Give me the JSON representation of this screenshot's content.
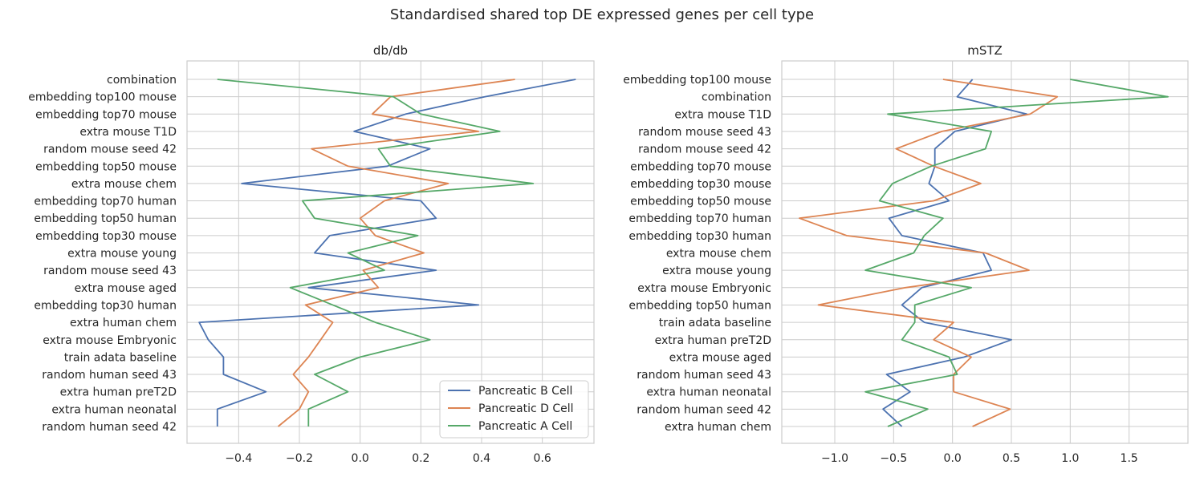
{
  "figure": {
    "title": "Standardised shared top DE expressed genes per cell type"
  },
  "chart_data": [
    {
      "type": "line",
      "title": "db/db",
      "orientation": "horizontal",
      "xlim": [
        -0.57,
        0.77
      ],
      "xticks": [
        -0.4,
        -0.2,
        0.0,
        0.2,
        0.4,
        0.6
      ],
      "xtick_labels": [
        "−0.4",
        "−0.2",
        "0.0",
        "0.2",
        "0.4",
        "0.6"
      ],
      "grid": true,
      "legend": {
        "position": "lower-right"
      },
      "categories": [
        "combination",
        "embedding top100 mouse",
        "embedding top70 mouse",
        "extra mouse T1D",
        "random mouse seed 42",
        "embedding top50 mouse",
        "extra mouse chem",
        "embedding top70 human",
        "embedding top50 human",
        "embedding top30 mouse",
        "extra mouse young",
        "random mouse seed 43",
        "extra mouse aged",
        "embedding top30 human",
        "extra human chem",
        "extra mouse Embryonic",
        "train adata baseline",
        "random human seed 43",
        "extra human preT2D",
        "extra human neonatal",
        "random human seed 42"
      ],
      "series": [
        {
          "name": "Pancreatic B Cell",
          "color": "#4c72b0",
          "values": [
            0.71,
            0.41,
            0.15,
            -0.02,
            0.23,
            0.09,
            -0.39,
            0.2,
            0.25,
            -0.1,
            -0.15,
            0.25,
            -0.17,
            0.39,
            -0.53,
            -0.5,
            -0.45,
            -0.45,
            -0.31,
            -0.47,
            -0.47
          ]
        },
        {
          "name": "Pancreatic D Cell",
          "color": "#dd8452",
          "values": [
            0.51,
            0.1,
            0.04,
            0.39,
            -0.16,
            -0.04,
            0.29,
            0.08,
            0.0,
            0.05,
            0.21,
            0.01,
            0.06,
            -0.18,
            -0.09,
            -0.13,
            -0.17,
            -0.22,
            -0.17,
            -0.2,
            -0.27
          ]
        },
        {
          "name": "Pancreatic A Cell",
          "color": "#55a868",
          "values": [
            -0.47,
            0.11,
            0.2,
            0.46,
            0.06,
            0.1,
            0.57,
            -0.19,
            -0.15,
            0.19,
            -0.04,
            0.08,
            -0.23,
            -0.09,
            0.05,
            0.23,
            0.0,
            -0.15,
            -0.04,
            -0.17,
            -0.17
          ]
        }
      ]
    },
    {
      "type": "line",
      "title": "mSTZ",
      "orientation": "horizontal",
      "xlim": [
        -1.45,
        2.0
      ],
      "xticks": [
        -1.0,
        -0.5,
        0.0,
        0.5,
        1.0,
        1.5
      ],
      "xtick_labels": [
        "−1.0",
        "−0.5",
        "0.0",
        "0.5",
        "1.0",
        "1.5"
      ],
      "grid": true,
      "categories": [
        "embedding top100 mouse",
        "combination",
        "extra mouse T1D",
        "random mouse seed 43",
        "random mouse seed 42",
        "embedding top70 mouse",
        "embedding top30 mouse",
        "embedding top50 mouse",
        "embedding top70 human",
        "embedding top30 human",
        "extra mouse chem",
        "extra mouse young",
        "extra mouse Embryonic",
        "embedding top50 human",
        "train adata baseline",
        "extra human preT2D",
        "extra mouse aged",
        "random human seed 43",
        "extra human neonatal",
        "random human seed 42",
        "extra human chem"
      ],
      "series": [
        {
          "name": "Pancreatic B Cell",
          "color": "#4c72b0",
          "values": [
            0.17,
            0.04,
            0.63,
            0.02,
            -0.15,
            -0.15,
            -0.2,
            -0.03,
            -0.54,
            -0.43,
            0.26,
            0.33,
            -0.26,
            -0.43,
            -0.24,
            0.5,
            0.1,
            -0.56,
            -0.36,
            -0.59,
            -0.43
          ]
        },
        {
          "name": "Pancreatic D Cell",
          "color": "#dd8452",
          "values": [
            -0.08,
            0.89,
            0.66,
            -0.09,
            -0.48,
            -0.16,
            0.24,
            -0.16,
            -1.3,
            -0.9,
            0.28,
            0.65,
            -0.4,
            -1.14,
            0.01,
            -0.16,
            0.16,
            0.01,
            0.01,
            0.49,
            0.17
          ]
        },
        {
          "name": "Pancreatic A Cell",
          "color": "#55a868",
          "values": [
            1.0,
            1.83,
            -0.55,
            0.33,
            0.28,
            -0.18,
            -0.51,
            -0.62,
            -0.08,
            -0.24,
            -0.33,
            -0.74,
            0.16,
            -0.32,
            -0.32,
            -0.43,
            -0.03,
            0.04,
            -0.74,
            -0.21,
            -0.55
          ]
        }
      ]
    }
  ]
}
